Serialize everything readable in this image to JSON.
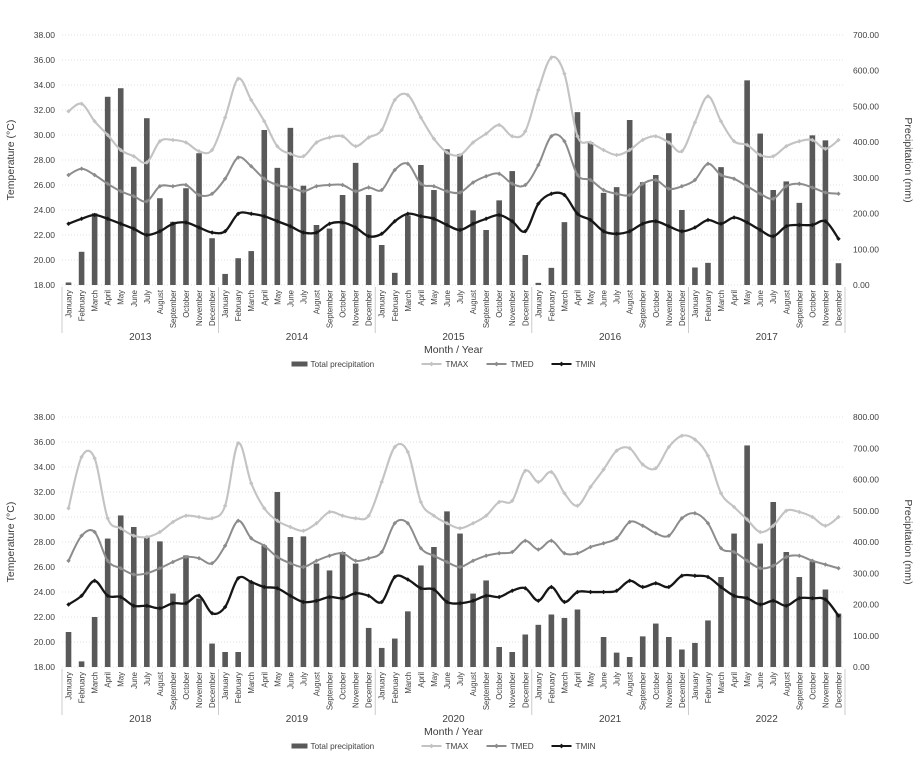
{
  "page": {
    "background": "#ffffff"
  },
  "colors": {
    "bar": "#595959",
    "tmax": "#c3c3c3",
    "tmed": "#8c8c8c",
    "tmin": "#161616",
    "grid": "#d9d9d9",
    "tick_text": "#404040",
    "axis_title_text": "#3a3a3a",
    "year_bracket": "#bfbfbf"
  },
  "chart_data": [
    {
      "type": "bar+line",
      "title": "",
      "ylabel_left": "Temperature (°C)",
      "ylabel_right": "Precipitation (mm)",
      "xlabel": "Month / Year",
      "legend": {
        "precip": "Total precipitation",
        "tmax": "TMAX",
        "tmed": "TMED",
        "tmin": "TMIN"
      },
      "temp_axis": {
        "min": 18,
        "max": 38,
        "step": 2
      },
      "precip_axis": {
        "min": 0,
        "max": 700,
        "step": 100
      },
      "grid": true,
      "years": [
        "2013",
        "2014",
        "2015",
        "2016",
        "2017"
      ],
      "months": [
        "January",
        "February",
        "March",
        "April",
        "May",
        "June",
        "July",
        "August",
        "September",
        "October",
        "November",
        "December"
      ],
      "series": [
        {
          "name": "Total precipitation",
          "axis": "right",
          "values": [
            7,
            93,
            201,
            527,
            551,
            331,
            467,
            243,
            177,
            271,
            369,
            131,
            31,
            75,
            95,
            434,
            328,
            440,
            278,
            168,
            158,
            252,
            342,
            252,
            112,
            34,
            195,
            336,
            266,
            380,
            367,
            209,
            154,
            237,
            319,
            84,
            6,
            48,
            176,
            484,
            400,
            258,
            274,
            462,
            288,
            308,
            425,
            210,
            49,
            62,
            330,
            0,
            573,
            424,
            266,
            290,
            230,
            419,
            405,
            61
          ]
        },
        {
          "name": "TMAX",
          "axis": "left",
          "values": [
            31.9,
            32.5,
            31.1,
            30.0,
            28.8,
            28.3,
            27.8,
            29.5,
            29.6,
            29.4,
            28.7,
            28.8,
            31.4,
            34.5,
            32.8,
            31.1,
            29.1,
            28.5,
            28.3,
            29.4,
            29.8,
            29.9,
            29.1,
            29.8,
            30.4,
            32.8,
            33.2,
            31.4,
            29.7,
            28.6,
            28.4,
            29.4,
            30.1,
            30.8,
            29.9,
            30.3,
            33.6,
            36.2,
            34.9,
            29.9,
            29.4,
            28.8,
            28.4,
            28.8,
            29.6,
            29.9,
            29.4,
            28.7,
            31.0,
            33.1,
            31.1,
            29.5,
            29.2,
            28.4,
            28.3,
            29.1,
            29.5,
            29.6,
            28.9,
            29.6
          ]
        },
        {
          "name": "TMED",
          "axis": "left",
          "values": [
            26.8,
            27.3,
            26.8,
            26.1,
            25.5,
            25.1,
            24.7,
            25.9,
            25.9,
            26.0,
            25.2,
            25.3,
            26.5,
            28.2,
            27.5,
            26.5,
            26.0,
            25.8,
            25.5,
            25.9,
            26.0,
            26.0,
            25.5,
            25.8,
            25.6,
            27.2,
            27.7,
            26.1,
            25.9,
            25.5,
            25.4,
            26.2,
            26.7,
            26.9,
            26.1,
            26.0,
            27.6,
            29.9,
            29.5,
            26.8,
            26.4,
            25.6,
            25.3,
            25.2,
            26.1,
            26.4,
            25.7,
            25.9,
            26.4,
            27.7,
            26.8,
            26.5,
            25.9,
            25.3,
            24.9,
            25.9,
            26.1,
            25.8,
            25.4,
            25.3
          ]
        },
        {
          "name": "TMIN",
          "axis": "left",
          "values": [
            22.9,
            23.3,
            23.6,
            23.3,
            22.9,
            22.5,
            22.0,
            22.3,
            22.9,
            23.0,
            22.6,
            22.2,
            22.3,
            23.7,
            23.7,
            23.5,
            23.1,
            22.7,
            22.2,
            22.2,
            22.9,
            23.0,
            22.6,
            21.9,
            22.1,
            23.1,
            23.7,
            23.5,
            23.3,
            22.8,
            22.4,
            22.9,
            23.3,
            23.6,
            23.1,
            22.3,
            24.5,
            25.3,
            25.2,
            23.7,
            23.2,
            22.3,
            22.1,
            22.3,
            22.9,
            23.1,
            22.7,
            22.3,
            22.6,
            23.2,
            22.9,
            23.4,
            23.0,
            22.4,
            21.9,
            22.7,
            22.8,
            22.8,
            23.1,
            21.7
          ]
        }
      ]
    },
    {
      "type": "bar+line",
      "title": "",
      "ylabel_left": "Temperature (°C)",
      "ylabel_right": "Precipitation (mm)",
      "xlabel": "Month / Year",
      "legend": {
        "precip": "Total precipitation",
        "tmax": "TMAX",
        "tmed": "TMED",
        "tmin": "TMIN"
      },
      "temp_axis": {
        "min": 18,
        "max": 38,
        "step": 2
      },
      "precip_axis": {
        "min": 0,
        "max": 800,
        "step": 100
      },
      "grid": true,
      "years": [
        "2018",
        "2019",
        "2020",
        "2021",
        "2022"
      ],
      "months": [
        "January",
        "February",
        "March",
        "April",
        "May",
        "June",
        "July",
        "August",
        "September",
        "October",
        "November",
        "December"
      ],
      "series": [
        {
          "name": "Total precipitation",
          "axis": "right",
          "values": [
            112,
            18,
            160,
            411,
            485,
            448,
            416,
            402,
            235,
            357,
            219,
            75,
            48,
            48,
            272,
            389,
            560,
            416,
            418,
            331,
            309,
            368,
            331,
            125,
            61,
            91,
            178,
            325,
            384,
            498,
            427,
            235,
            277,
            64,
            48,
            104,
            135,
            168,
            157,
            184,
            0,
            96,
            46,
            32,
            98,
            139,
            96,
            56,
            77,
            149,
            288,
            427,
            709,
            395,
            528,
            368,
            288,
            338,
            248,
            171
          ]
        },
        {
          "name": "TMAX",
          "axis": "left",
          "values": [
            30.7,
            34.8,
            34.7,
            29.9,
            29.1,
            28.5,
            28.4,
            28.8,
            29.6,
            30.1,
            30.0,
            29.9,
            30.9,
            35.9,
            32.7,
            30.7,
            29.7,
            29.2,
            28.9,
            29.5,
            30.4,
            30.1,
            29.9,
            30.1,
            32.8,
            35.6,
            35.2,
            31.2,
            30.1,
            29.5,
            29.1,
            29.5,
            30.1,
            31.2,
            31.3,
            33.7,
            32.8,
            33.6,
            31.9,
            30.9,
            32.4,
            33.8,
            35.3,
            35.5,
            34.2,
            33.9,
            35.6,
            36.5,
            36.2,
            34.9,
            31.9,
            30.8,
            29.8,
            28.8,
            29.3,
            30.5,
            30.4,
            30.0,
            29.3,
            30.0
          ]
        },
        {
          "name": "TMED",
          "axis": "left",
          "values": [
            26.5,
            28.5,
            28.8,
            26.5,
            25.9,
            25.4,
            25.5,
            25.9,
            26.4,
            26.8,
            26.7,
            26.3,
            27.7,
            29.7,
            28.3,
            27.7,
            26.8,
            26.3,
            26.0,
            26.5,
            26.9,
            27.1,
            26.5,
            26.7,
            27.2,
            29.5,
            29.5,
            27.5,
            26.9,
            26.4,
            26.0,
            26.5,
            26.9,
            27.1,
            27.2,
            28.1,
            27.4,
            28.1,
            27.1,
            27.1,
            27.6,
            27.9,
            28.3,
            29.6,
            29.3,
            28.7,
            28.5,
            29.9,
            30.3,
            29.5,
            27.5,
            27.2,
            26.5,
            25.9,
            26.1,
            26.8,
            26.9,
            26.5,
            26.2,
            25.9
          ]
        },
        {
          "name": "TMIN",
          "axis": "left",
          "values": [
            23.0,
            23.7,
            24.9,
            23.7,
            23.6,
            22.9,
            22.9,
            22.7,
            23.1,
            23.1,
            23.7,
            22.3,
            22.8,
            25.1,
            24.8,
            24.4,
            24.3,
            23.7,
            23.2,
            23.3,
            23.6,
            23.5,
            23.9,
            23.7,
            23.2,
            25.2,
            25.0,
            24.3,
            24.2,
            23.2,
            23.1,
            23.3,
            23.7,
            23.6,
            24.1,
            24.3,
            23.3,
            24.4,
            23.2,
            24.0,
            24.0,
            24.0,
            24.1,
            24.9,
            24.4,
            24.7,
            24.4,
            25.3,
            25.3,
            25.2,
            24.4,
            23.7,
            23.5,
            23.0,
            23.3,
            22.9,
            23.5,
            23.5,
            23.4,
            22.1
          ]
        }
      ]
    }
  ]
}
